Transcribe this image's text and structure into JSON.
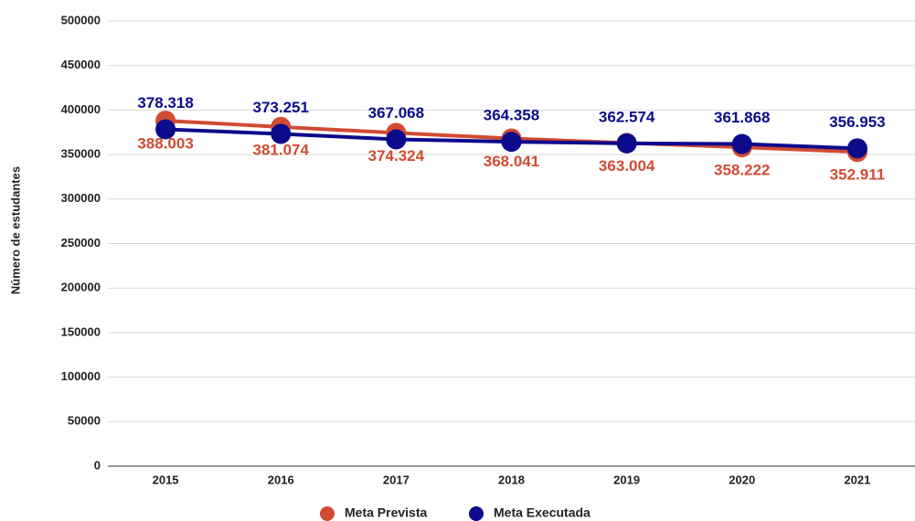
{
  "chart_data": {
    "type": "line",
    "y_label": "Número de estudantes",
    "categories": [
      "2015",
      "2016",
      "2017",
      "2018",
      "2019",
      "2020",
      "2021"
    ],
    "series": [
      {
        "name": "Meta Prevista",
        "color": "#d14b32",
        "values": [
          388003,
          381074,
          374324,
          368041,
          363004,
          358222,
          352911
        ],
        "value_labels": [
          "388.003",
          "381.074",
          "374.324",
          "368.041",
          "363.004",
          "358.222",
          "352.911"
        ]
      },
      {
        "name": "Meta Executada",
        "color": "#0b0b8c",
        "values": [
          378318,
          373251,
          367068,
          364358,
          362574,
          361868,
          356953
        ],
        "value_labels": [
          "378.318",
          "373.251",
          "367.068",
          "364.358",
          "362.574",
          "361.868",
          "356.953"
        ]
      }
    ],
    "ylim": [
      0,
      500000
    ],
    "yticks": [
      0,
      50000,
      100000,
      150000,
      200000,
      250000,
      300000,
      350000,
      400000,
      450000,
      500000
    ],
    "grid": true,
    "legend": "bottom"
  }
}
